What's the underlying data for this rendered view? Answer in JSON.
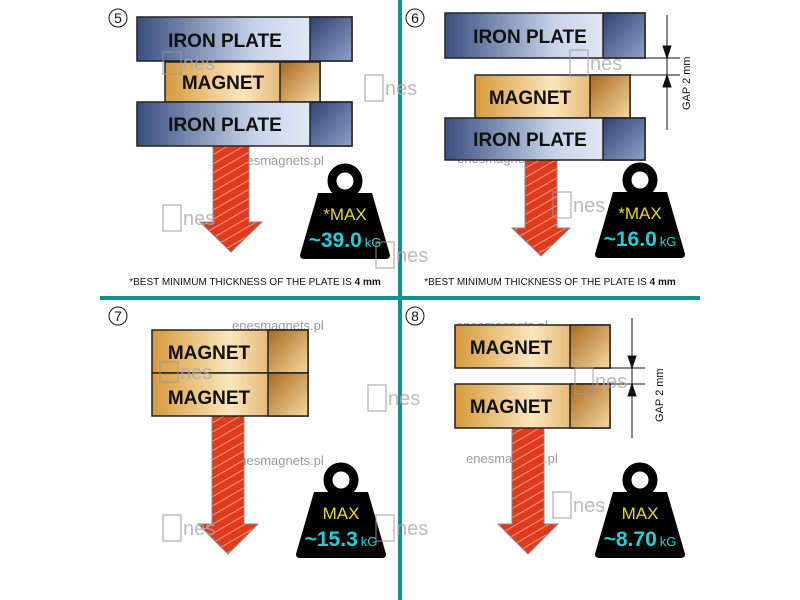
{
  "colors": {
    "divider": "#12908e",
    "iron_dark": "#3a4f80",
    "magnet": "#d79a3c",
    "arrow": "#e03a1c",
    "weight": "#000000",
    "max_text": "#e8d820",
    "value_text": "#20d0d8"
  },
  "watermark": {
    "url": "enesmagnets.pl",
    "logo": "nes"
  },
  "panels": [
    {
      "number": "5",
      "top_label": "IRON PLATE",
      "middle_label": "MAGNET",
      "bottom_label": "IRON PLATE",
      "max": "*MAX",
      "value": "~39.0",
      "unit": "kG",
      "note_prefix": "*BEST MINIMUM THICKNESS OF THE PLATE IS ",
      "note_value": "4 mm"
    },
    {
      "number": "6",
      "top_label": "IRON PLATE",
      "middle_label": "MAGNET",
      "bottom_label": "IRON PLATE",
      "gap": "GAP 2 mm",
      "max": "*MAX",
      "value": "~16.0",
      "unit": "kG",
      "note_prefix": "*BEST MINIMUM THICKNESS OF THE PLATE IS ",
      "note_value": "4 mm"
    },
    {
      "number": "7",
      "top_label": "MAGNET",
      "bottom_label": "MAGNET",
      "max": "MAX",
      "value": "~15.3",
      "unit": "kG"
    },
    {
      "number": "8",
      "top_label": "MAGNET",
      "bottom_label": "MAGNET",
      "gap": "GAP 2 mm",
      "max": "MAX",
      "value": "~8.70",
      "unit": "kG"
    }
  ]
}
